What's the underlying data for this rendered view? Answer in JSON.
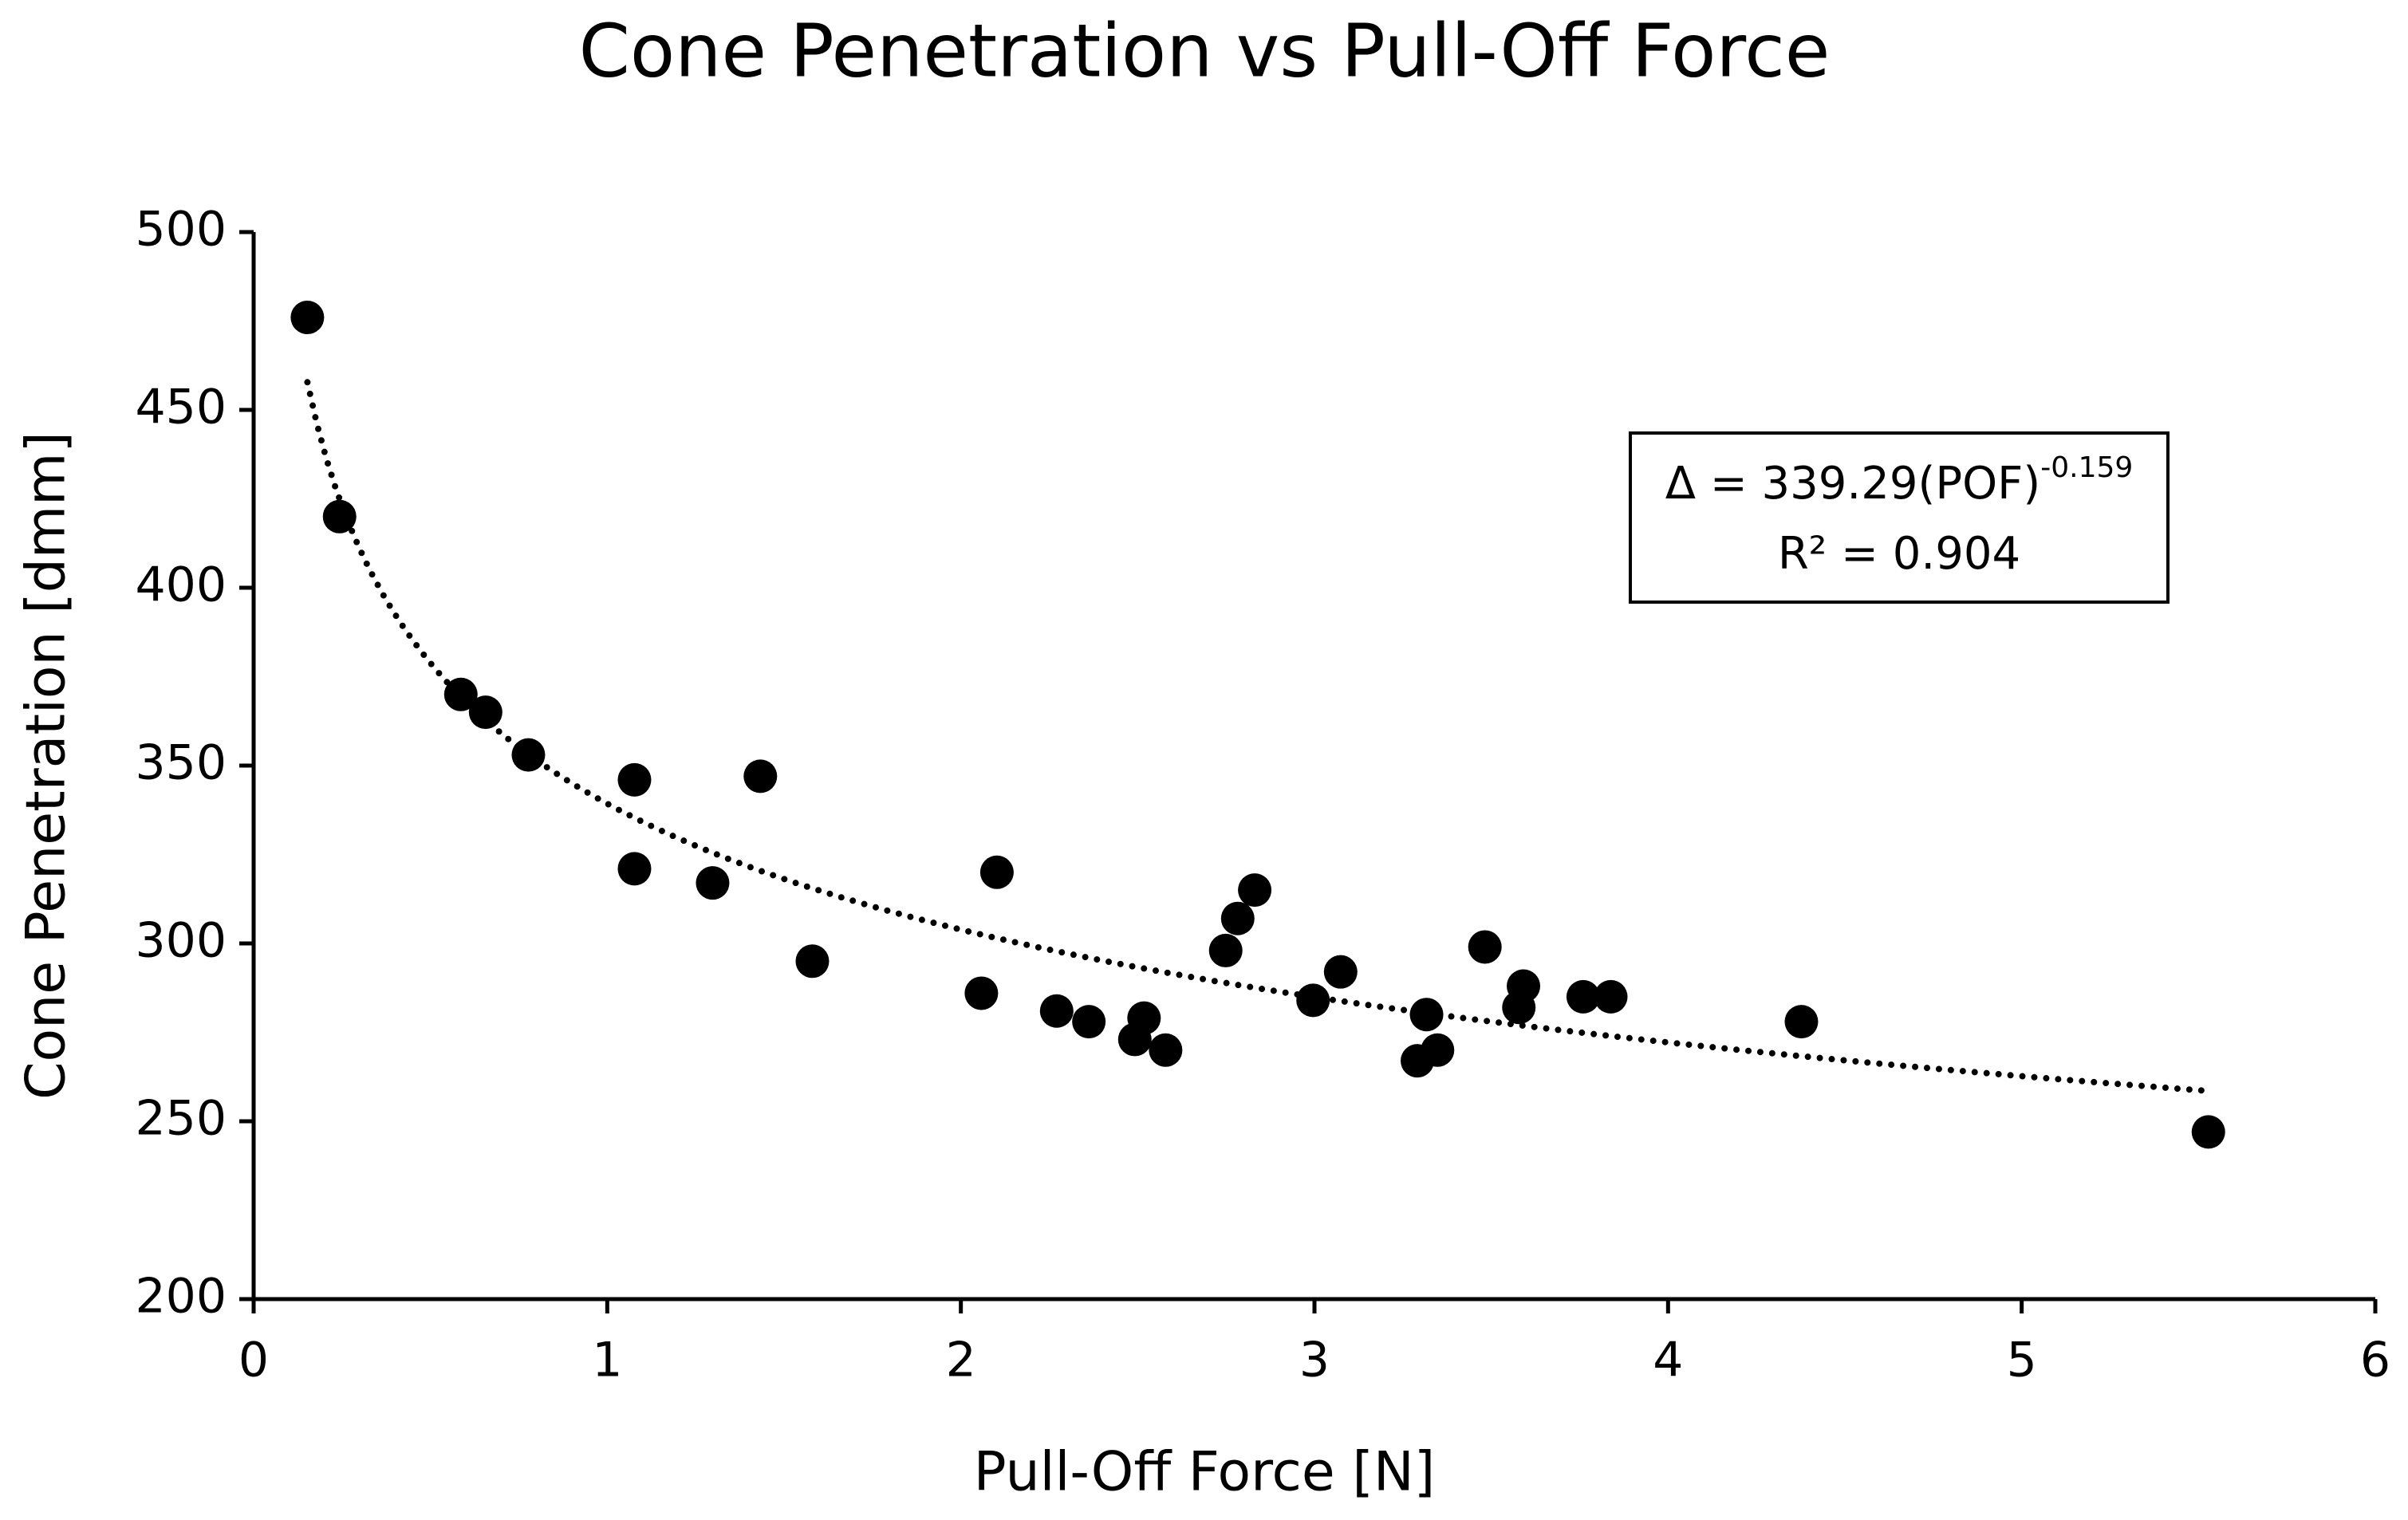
{
  "chart_data": {
    "type": "scatter",
    "title": "Cone Penetration vs Pull-Off Force",
    "x_label": "Pull-Off Force [N]",
    "y_label": "Cone Penetration [dmm]",
    "x": [
      0.152,
      0.243,
      0.586,
      0.656,
      0.777,
      1.077,
      1.077,
      1.298,
      1.433,
      1.58,
      2.058,
      2.102,
      2.271,
      2.362,
      2.518,
      2.492,
      2.579,
      2.749,
      2.783,
      2.831,
      2.996,
      3.074,
      3.291,
      3.317,
      3.348,
      3.482,
      3.578,
      3.591,
      3.76,
      3.838,
      4.377,
      5.528
    ],
    "values": [
      476,
      420,
      370,
      365,
      353,
      346,
      321,
      317,
      347,
      295,
      286,
      320,
      281,
      278,
      279,
      273,
      270,
      298,
      307,
      315,
      284,
      292,
      267,
      280,
      270,
      299,
      282,
      288,
      285,
      285,
      278,
      247
    ],
    "color": "#000000",
    "xlim": [
      0,
      6
    ],
    "xticks": [
      0,
      1,
      2,
      3,
      4,
      5,
      6
    ],
    "ylim": [
      200,
      500
    ],
    "yticks": [
      200,
      250,
      300,
      350,
      400,
      450,
      500
    ],
    "trendline": {
      "type": "power",
      "coefficient": 339.29,
      "exponent": -0.159
    },
    "equation": {
      "base": "Δ = 339.29(POF)",
      "superscript": "-0.159",
      "r_squared": "R² = 0.904"
    }
  }
}
